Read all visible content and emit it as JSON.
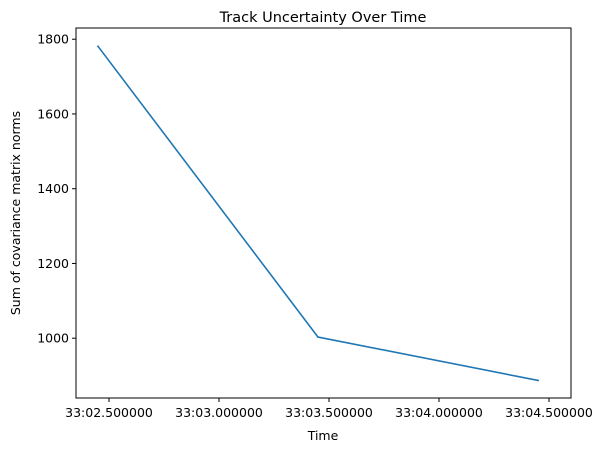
{
  "chart_data": {
    "type": "line",
    "title": "Track Uncertainty Over Time",
    "xlabel": "Time",
    "ylabel": "Sum of covariance matrix norms",
    "x_ticks": [
      {
        "value": 2.5,
        "label": "33:02.500000"
      },
      {
        "value": 3.0,
        "label": "33:03.000000"
      },
      {
        "value": 3.5,
        "label": "33:03.500000"
      },
      {
        "value": 4.0,
        "label": "33:04.000000"
      },
      {
        "value": 4.5,
        "label": "33:04.500000"
      }
    ],
    "y_ticks": [
      {
        "value": 1000,
        "label": "1000"
      },
      {
        "value": 1200,
        "label": "1200"
      },
      {
        "value": 1400,
        "label": "1400"
      },
      {
        "value": 1600,
        "label": "1600"
      },
      {
        "value": 1800,
        "label": "1800"
      }
    ],
    "xlim": [
      2.35,
      4.6
    ],
    "ylim": [
      840,
      1830
    ],
    "grid": false,
    "series": [
      {
        "color": "#1f77b4",
        "x": [
          2.45,
          3.45,
          4.45
        ],
        "y": [
          1781,
          1003,
          887
        ]
      }
    ]
  }
}
